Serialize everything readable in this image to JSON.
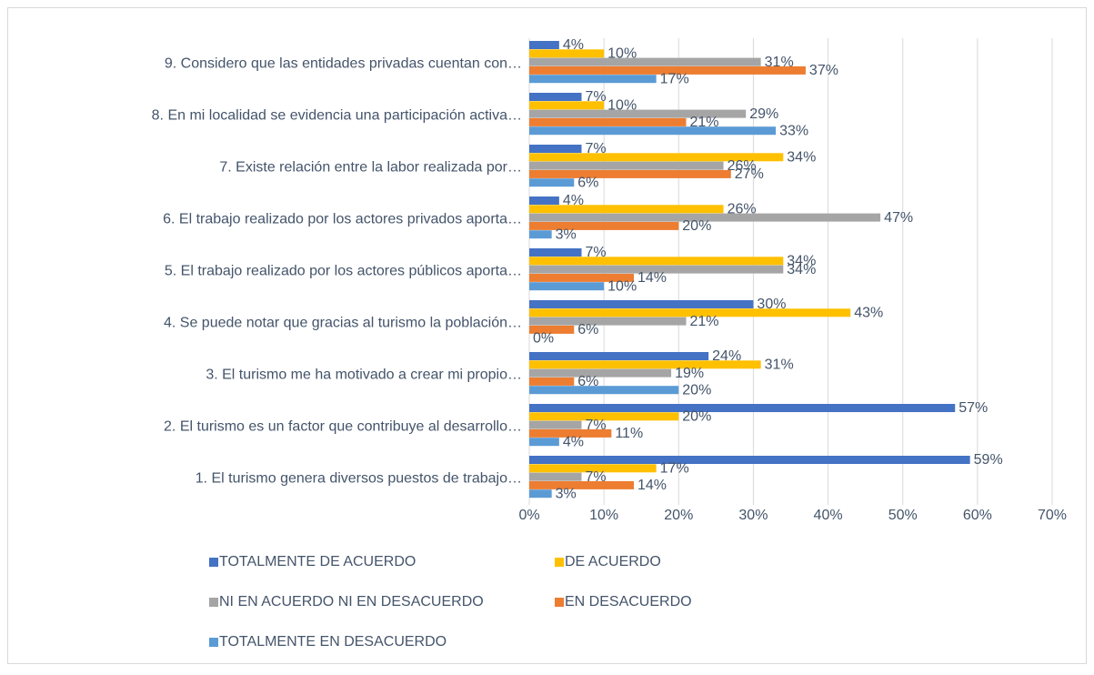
{
  "chart_data": {
    "type": "hbar",
    "categories": [
      "1. El turismo genera diversos puestos de trabajo…",
      "2. El turismo es un factor que contribuye al desarrollo…",
      "3. El turismo me ha motivado a crear mi propio…",
      "4. Se puede notar que gracias al turismo la población…",
      "5. El trabajo realizado por los actores públicos aporta…",
      "6. El trabajo realizado por los actores privados aporta…",
      "7. Existe relación entre la labor realizada por…",
      "8. En mi localidad se evidencia una participación activa…",
      "9. Considero que las entidades privadas cuentan con…"
    ],
    "series": [
      {
        "name": "TOTALMENTE DE ACUERDO",
        "color": "#4472c4",
        "values": [
          59,
          57,
          24,
          30,
          7,
          4,
          7,
          7,
          4
        ],
        "value_labels": [
          "59%",
          "57%",
          "24%",
          "30%",
          "7%",
          "4%",
          "7%",
          "7%",
          "4%"
        ]
      },
      {
        "name": "DE ACUERDO",
        "color": "#ffc000",
        "values": [
          17,
          20,
          31,
          43,
          34,
          26,
          34,
          10,
          10
        ],
        "value_labels": [
          "17%",
          "20%",
          "31%",
          "43%",
          "34%",
          "26%",
          "34%",
          "10%",
          "10%"
        ]
      },
      {
        "name": "NI EN ACUERDO NI EN DESACUERDO",
        "color": "#a5a5a5",
        "values": [
          7,
          7,
          19,
          21,
          34,
          47,
          26,
          29,
          31
        ],
        "value_labels": [
          "7%",
          "7%",
          "19%",
          "21%",
          "34%",
          "47%",
          "26%",
          "29%",
          "31%"
        ]
      },
      {
        "name": "EN DESACUERDO",
        "color": "#ed7d31",
        "values": [
          14,
          11,
          6,
          6,
          14,
          20,
          27,
          21,
          37
        ],
        "value_labels": [
          "14%",
          "11%",
          "6%",
          "6%",
          "14%",
          "20%",
          "27%",
          "21%",
          "37%"
        ]
      },
      {
        "name": "TOTALMENTE EN DESACUERDO",
        "color": "#5b9bd5",
        "values": [
          3,
          4,
          20,
          0,
          10,
          3,
          6,
          33,
          17
        ],
        "value_labels": [
          "3%",
          "4%",
          "20%",
          "0%",
          "10%",
          "3%",
          "6%",
          "33%",
          "17%"
        ]
      }
    ],
    "xlim": [
      0,
      70
    ],
    "xticks": [
      {
        "value": 0,
        "label": "0%"
      },
      {
        "value": 10,
        "label": "10%"
      },
      {
        "value": 20,
        "label": "20%"
      },
      {
        "value": 30,
        "label": "30%"
      },
      {
        "value": 40,
        "label": "40%"
      },
      {
        "value": 50,
        "label": "50%"
      },
      {
        "value": 60,
        "label": "60%"
      },
      {
        "value": 70,
        "label": "70%"
      }
    ],
    "grid": true
  }
}
